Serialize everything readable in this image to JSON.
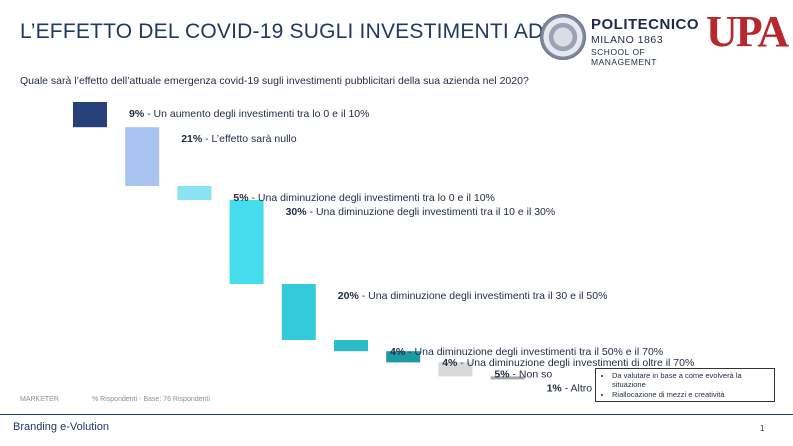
{
  "header": {
    "title": "L’EFFETTO DEL COVID-19 SUGLI INVESTIMENTI ADV",
    "question": "Quale sarà l’effetto dell’attuale emergenza covid-19 sugli investimenti pubblicitari della sua azienda nel 2020?"
  },
  "logos": {
    "polimi_name": "POLITECNICO",
    "polimi_sub": "MILANO 1863",
    "polimi_school": "SCHOOL OF MANAGEMENT",
    "upa": "UPA"
  },
  "chart_data": {
    "type": "bar",
    "subtype": "waterfall",
    "title": "",
    "unit": "%",
    "categories": [
      "Un aumento degli investimenti tra lo 0 e il 10%",
      "L’effetto sarà nullo",
      "Una diminuzione degli investimenti tra lo 0 e il 10%",
      "Una diminuzione degli investimenti tra il 10 e il 30%",
      "Una diminuzione degli investimenti tra il 30 e il 50%",
      "Una diminuzione degli investimenti tra il 50% e il 70%",
      "Una diminuzione degli investimenti di oltre il 70%",
      "Non so",
      "Altro"
    ],
    "values": [
      9,
      21,
      5,
      30,
      20,
      4,
      4,
      5,
      1
    ],
    "value_labels": [
      "9%",
      "21%",
      "5%",
      "30%",
      "20%",
      "4%",
      "4%",
      "5%",
      "1%"
    ],
    "colors": [
      "#27407a",
      "#a9c4f0",
      "#8be3f2",
      "#45dced",
      "#33cbdb",
      "#2cbcc9",
      "#1f99a5",
      "#d9d9d9",
      "#a6a6a6"
    ]
  },
  "notes": {
    "items": [
      "Da valutare in base a come evolverà la situazione",
      "Riallocazione di mezzi e creatività"
    ]
  },
  "footer": {
    "source": "MARKETER",
    "base": "% Rispondenti - Base: 76 Rispondenti",
    "brand": "Branding e-Volution",
    "page": "1"
  }
}
